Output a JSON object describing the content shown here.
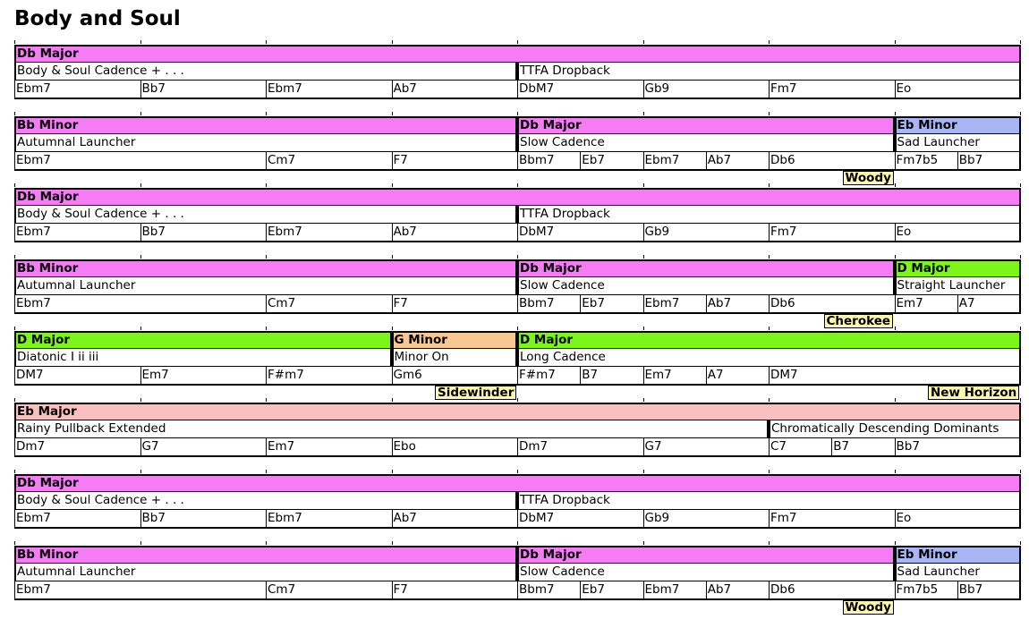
{
  "title": "Body and Soul",
  "colors": {
    "db_major": "#f57cf5",
    "bb_minor": "#f57cf5",
    "eb_minor": "#a9b6f5",
    "d_major": "#7cf51a",
    "g_minor": "#f9c892",
    "eb_major": "#f9c0c0",
    "joint": "#fff8b0"
  },
  "rows": [
    {
      "keys": [
        {
          "label": "Db Major",
          "start": 0,
          "span": 8,
          "color": "db_major"
        }
      ],
      "bricks": [
        {
          "label": "Body & Soul Cadence + . . .",
          "start": 0,
          "span": 4
        },
        {
          "label": "TTFA Dropback",
          "start": 4,
          "span": 4
        }
      ],
      "chords": [
        {
          "c": "Ebm7",
          "s": 0,
          "w": 1
        },
        {
          "c": "Bb7",
          "s": 1,
          "w": 1
        },
        {
          "c": "Ebm7",
          "s": 2,
          "w": 1
        },
        {
          "c": "Ab7",
          "s": 3,
          "w": 1
        },
        {
          "c": "DbM7",
          "s": 4,
          "w": 1
        },
        {
          "c": "Gb9",
          "s": 5,
          "w": 1
        },
        {
          "c": "Fm7",
          "s": 6,
          "w": 1
        },
        {
          "c": "Eo",
          "s": 7,
          "w": 1
        }
      ],
      "joints": []
    },
    {
      "keys": [
        {
          "label": "Bb Minor",
          "start": 0,
          "span": 4,
          "color": "bb_minor"
        },
        {
          "label": "Db Major",
          "start": 4,
          "span": 3,
          "color": "db_major"
        },
        {
          "label": "Eb Minor",
          "start": 7,
          "span": 1,
          "color": "eb_minor"
        }
      ],
      "bricks": [
        {
          "label": "Autumnal Launcher",
          "start": 0,
          "span": 4
        },
        {
          "label": "Slow Cadence",
          "start": 4,
          "span": 3
        },
        {
          "label": "Sad Launcher",
          "start": 7,
          "span": 1
        }
      ],
      "chords": [
        {
          "c": "Ebm7",
          "s": 0,
          "w": 2
        },
        {
          "c": "Cm7",
          "s": 2,
          "w": 1
        },
        {
          "c": "F7",
          "s": 3,
          "w": 1
        },
        {
          "c": "Bbm7",
          "s": 4,
          "w": 0.5
        },
        {
          "c": "Eb7",
          "s": 4.5,
          "w": 0.5
        },
        {
          "c": "Ebm7",
          "s": 5,
          "w": 0.5
        },
        {
          "c": "Ab7",
          "s": 5.5,
          "w": 0.5
        },
        {
          "c": "Db6",
          "s": 6,
          "w": 1
        },
        {
          "c": "Fm7b5",
          "s": 7,
          "w": 0.5
        },
        {
          "c": "Bb7",
          "s": 7.5,
          "w": 0.5
        }
      ],
      "joints": [
        {
          "label": "Woody",
          "at": 7
        }
      ]
    },
    {
      "keys": [
        {
          "label": "Db Major",
          "start": 0,
          "span": 8,
          "color": "db_major"
        }
      ],
      "bricks": [
        {
          "label": "Body & Soul Cadence + . . .",
          "start": 0,
          "span": 4
        },
        {
          "label": "TTFA Dropback",
          "start": 4,
          "span": 4
        }
      ],
      "chords": [
        {
          "c": "Ebm7",
          "s": 0,
          "w": 1
        },
        {
          "c": "Bb7",
          "s": 1,
          "w": 1
        },
        {
          "c": "Ebm7",
          "s": 2,
          "w": 1
        },
        {
          "c": "Ab7",
          "s": 3,
          "w": 1
        },
        {
          "c": "DbM7",
          "s": 4,
          "w": 1
        },
        {
          "c": "Gb9",
          "s": 5,
          "w": 1
        },
        {
          "c": "Fm7",
          "s": 6,
          "w": 1
        },
        {
          "c": "Eo",
          "s": 7,
          "w": 1
        }
      ],
      "joints": []
    },
    {
      "keys": [
        {
          "label": "Bb Minor",
          "start": 0,
          "span": 4,
          "color": "bb_minor"
        },
        {
          "label": "Db Major",
          "start": 4,
          "span": 3,
          "color": "db_major"
        },
        {
          "label": "D Major",
          "start": 7,
          "span": 1,
          "color": "d_major"
        }
      ],
      "bricks": [
        {
          "label": "Autumnal Launcher",
          "start": 0,
          "span": 4
        },
        {
          "label": "Slow Cadence",
          "start": 4,
          "span": 3
        },
        {
          "label": "Straight Launcher",
          "start": 7,
          "span": 1
        }
      ],
      "chords": [
        {
          "c": "Ebm7",
          "s": 0,
          "w": 2
        },
        {
          "c": "Cm7",
          "s": 2,
          "w": 1
        },
        {
          "c": "F7",
          "s": 3,
          "w": 1
        },
        {
          "c": "Bbm7",
          "s": 4,
          "w": 0.5
        },
        {
          "c": "Eb7",
          "s": 4.5,
          "w": 0.5
        },
        {
          "c": "Ebm7",
          "s": 5,
          "w": 0.5
        },
        {
          "c": "Ab7",
          "s": 5.5,
          "w": 0.5
        },
        {
          "c": "Db6",
          "s": 6,
          "w": 1
        },
        {
          "c": "Em7",
          "s": 7,
          "w": 0.5
        },
        {
          "c": "A7",
          "s": 7.5,
          "w": 0.5
        }
      ],
      "joints": [
        {
          "label": "Cherokee",
          "at": 7
        }
      ]
    },
    {
      "keys": [
        {
          "label": "D Major",
          "start": 0,
          "span": 3,
          "color": "d_major"
        },
        {
          "label": "G Minor",
          "start": 3,
          "span": 1,
          "color": "g_minor"
        },
        {
          "label": "D Major",
          "start": 4,
          "span": 4,
          "color": "d_major"
        }
      ],
      "bricks": [
        {
          "label": "Diatonic I ii iii",
          "start": 0,
          "span": 3
        },
        {
          "label": "Minor On",
          "start": 3,
          "span": 1
        },
        {
          "label": "Long Cadence",
          "start": 4,
          "span": 4
        }
      ],
      "chords": [
        {
          "c": "DM7",
          "s": 0,
          "w": 1
        },
        {
          "c": "Em7",
          "s": 1,
          "w": 1
        },
        {
          "c": "F#m7",
          "s": 2,
          "w": 1
        },
        {
          "c": "Gm6",
          "s": 3,
          "w": 1
        },
        {
          "c": "F#m7",
          "s": 4,
          "w": 0.5
        },
        {
          "c": "B7",
          "s": 4.5,
          "w": 0.5
        },
        {
          "c": "Em7",
          "s": 5,
          "w": 0.5
        },
        {
          "c": "A7",
          "s": 5.5,
          "w": 0.5
        },
        {
          "c": "DM7",
          "s": 6,
          "w": 2
        }
      ],
      "joints": [
        {
          "label": "Sidewinder",
          "at": 4
        },
        {
          "label": "New Horizon",
          "at": 8
        }
      ]
    },
    {
      "keys": [
        {
          "label": "Eb Major",
          "start": 0,
          "span": 8,
          "color": "eb_major"
        }
      ],
      "bricks": [
        {
          "label": "Rainy Pullback Extended",
          "start": 0,
          "span": 6
        },
        {
          "label": "Chromatically Descending Dominants",
          "start": 6,
          "span": 2
        }
      ],
      "chords": [
        {
          "c": "Dm7",
          "s": 0,
          "w": 1
        },
        {
          "c": "G7",
          "s": 1,
          "w": 1
        },
        {
          "c": "Em7",
          "s": 2,
          "w": 1
        },
        {
          "c": "Ebo",
          "s": 3,
          "w": 1
        },
        {
          "c": "Dm7",
          "s": 4,
          "w": 1
        },
        {
          "c": "G7",
          "s": 5,
          "w": 1
        },
        {
          "c": "C7",
          "s": 6,
          "w": 0.5
        },
        {
          "c": "B7",
          "s": 6.5,
          "w": 0.5
        },
        {
          "c": "Bb7",
          "s": 7,
          "w": 1
        }
      ],
      "joints": []
    },
    {
      "keys": [
        {
          "label": "Db Major",
          "start": 0,
          "span": 8,
          "color": "db_major"
        }
      ],
      "bricks": [
        {
          "label": "Body & Soul Cadence + . . .",
          "start": 0,
          "span": 4
        },
        {
          "label": "TTFA Dropback",
          "start": 4,
          "span": 4
        }
      ],
      "chords": [
        {
          "c": "Ebm7",
          "s": 0,
          "w": 1
        },
        {
          "c": "Bb7",
          "s": 1,
          "w": 1
        },
        {
          "c": "Ebm7",
          "s": 2,
          "w": 1
        },
        {
          "c": "Ab7",
          "s": 3,
          "w": 1
        },
        {
          "c": "DbM7",
          "s": 4,
          "w": 1
        },
        {
          "c": "Gb9",
          "s": 5,
          "w": 1
        },
        {
          "c": "Fm7",
          "s": 6,
          "w": 1
        },
        {
          "c": "Eo",
          "s": 7,
          "w": 1
        }
      ],
      "joints": []
    },
    {
      "keys": [
        {
          "label": "Bb Minor",
          "start": 0,
          "span": 4,
          "color": "bb_minor"
        },
        {
          "label": "Db Major",
          "start": 4,
          "span": 3,
          "color": "db_major"
        },
        {
          "label": "Eb Minor",
          "start": 7,
          "span": 1,
          "color": "eb_minor"
        }
      ],
      "bricks": [
        {
          "label": "Autumnal Launcher",
          "start": 0,
          "span": 4
        },
        {
          "label": "Slow Cadence",
          "start": 4,
          "span": 3
        },
        {
          "label": "Sad Launcher",
          "start": 7,
          "span": 1
        }
      ],
      "chords": [
        {
          "c": "Ebm7",
          "s": 0,
          "w": 2
        },
        {
          "c": "Cm7",
          "s": 2,
          "w": 1
        },
        {
          "c": "F7",
          "s": 3,
          "w": 1
        },
        {
          "c": "Bbm7",
          "s": 4,
          "w": 0.5
        },
        {
          "c": "Eb7",
          "s": 4.5,
          "w": 0.5
        },
        {
          "c": "Ebm7",
          "s": 5,
          "w": 0.5
        },
        {
          "c": "Ab7",
          "s": 5.5,
          "w": 0.5
        },
        {
          "c": "Db6",
          "s": 6,
          "w": 1
        },
        {
          "c": "Fm7b5",
          "s": 7,
          "w": 0.5
        },
        {
          "c": "Bb7",
          "s": 7.5,
          "w": 0.5
        }
      ],
      "joints": [
        {
          "label": "Woody",
          "at": 7
        }
      ]
    }
  ]
}
